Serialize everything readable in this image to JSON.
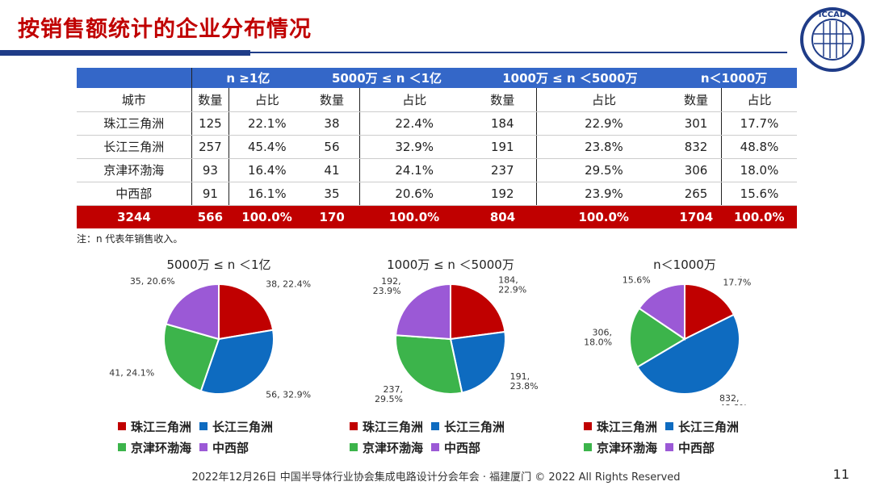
{
  "title": "按销售额统计的企业分布情况",
  "logo_text": "ICCAD",
  "colors": {
    "zhujiang": "#c00000",
    "changjiang": "#0e6bc0",
    "jingjin": "#3cb44b",
    "zhongxi": "#9b59d6",
    "header": "#3467c8",
    "total": "#c00000"
  },
  "table": {
    "groups": [
      "n ≥1亿",
      "5000万 ≤ n ＜1亿",
      "1000万 ≤ n ＜5000万",
      "n＜1000万"
    ],
    "city_header": "城市",
    "sub": [
      "数量",
      "占比"
    ],
    "rows": [
      {
        "city": "珠江三角洲",
        "cells": [
          "125",
          "22.1%",
          "38",
          "22.4%",
          "184",
          "22.9%",
          "301",
          "17.7%"
        ]
      },
      {
        "city": "长江三角洲",
        "cells": [
          "257",
          "45.4%",
          "56",
          "32.9%",
          "191",
          "23.8%",
          "832",
          "48.8%"
        ]
      },
      {
        "city": "京津环渤海",
        "cells": [
          "93",
          "16.4%",
          "41",
          "24.1%",
          "237",
          "29.5%",
          "306",
          "18.0%"
        ]
      },
      {
        "city": "中西部",
        "cells": [
          "91",
          "16.1%",
          "35",
          "20.6%",
          "192",
          "23.9%",
          "265",
          "15.6%"
        ]
      }
    ],
    "total": {
      "city": "3244",
      "cells": [
        "566",
        "100.0%",
        "170",
        "100.0%",
        "804",
        "100.0%",
        "1704",
        "100.0%"
      ]
    }
  },
  "note": "注：n 代表年销售收入。",
  "legend": [
    "珠江三角洲",
    "长江三角洲",
    "京津环渤海",
    "中西部"
  ],
  "chart_data": [
    {
      "type": "pie",
      "title": "5000万 ≤ n ＜1亿",
      "categories": [
        "珠江三角洲",
        "长江三角洲",
        "京津环渤海",
        "中西部"
      ],
      "values": [
        38,
        56,
        41,
        35
      ],
      "labels": [
        "38, 22.4%",
        "56, 32.9%",
        "41, 24.1%",
        "35, 20.6%"
      ]
    },
    {
      "type": "pie",
      "title": "1000万 ≤ n ＜5000万",
      "categories": [
        "珠江三角洲",
        "长江三角洲",
        "京津环渤海",
        "中西部"
      ],
      "values": [
        184,
        191,
        237,
        192
      ],
      "labels": [
        "184, 22.9%",
        "191, 23.8%",
        "237, 29.5%",
        "192, 23.9%"
      ]
    },
    {
      "type": "pie",
      "title": "n＜1000万",
      "categories": [
        "珠江三角洲",
        "长江三角洲",
        "京津环渤海",
        "中西部"
      ],
      "values": [
        301,
        832,
        306,
        265
      ],
      "labels": [
        "301, 17.7%",
        "832, 48.8%",
        "306, 18.0%",
        "265, 15.6%"
      ]
    }
  ],
  "footer": "2022年12月26日 中国半导体行业协会集成电路设计分会年会 · 福建厦门 © 2022 All Rights Reserved",
  "page_number": "11"
}
